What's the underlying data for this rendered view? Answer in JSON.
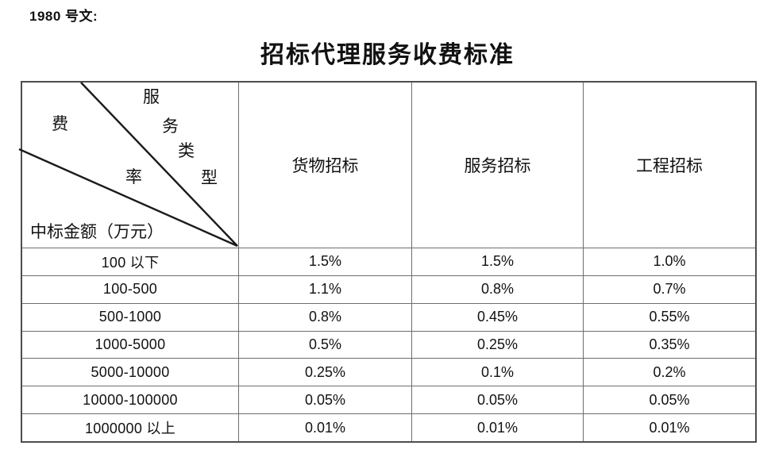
{
  "page": {
    "doc_label": "1980 号文:",
    "title": "招标代理服务收费标准"
  },
  "table": {
    "corner": {
      "service_type_chars": [
        "服",
        "务",
        "类",
        "型"
      ],
      "rate_chars": [
        "费",
        "率"
      ],
      "amount_axis_label": "中标金额（万元）"
    },
    "columns": [
      "货物招标",
      "服务招标",
      "工程招标"
    ],
    "rows": [
      {
        "label": "100 以下",
        "values": [
          "1.5%",
          "1.5%",
          "1.0%"
        ]
      },
      {
        "label": "100-500",
        "values": [
          "1.1%",
          "0.8%",
          "0.7%"
        ]
      },
      {
        "label": "500-1000",
        "values": [
          "0.8%",
          "0.45%",
          "0.55%"
        ]
      },
      {
        "label": "1000-5000",
        "values": [
          "0.5%",
          "0.25%",
          "0.35%"
        ]
      },
      {
        "label": "5000-10000",
        "values": [
          "0.25%",
          "0.1%",
          "0.2%"
        ]
      },
      {
        "label": "10000-100000",
        "values": [
          "0.05%",
          "0.05%",
          "0.05%"
        ]
      },
      {
        "label": "1000000 以上",
        "values": [
          "0.01%",
          "0.01%",
          "0.01%"
        ]
      }
    ]
  },
  "colors": {
    "border_outer": "#4d4d4d",
    "border_inner": "#6e6e6e",
    "diagonal_line": "#1a1a1a",
    "text": "#111111"
  }
}
